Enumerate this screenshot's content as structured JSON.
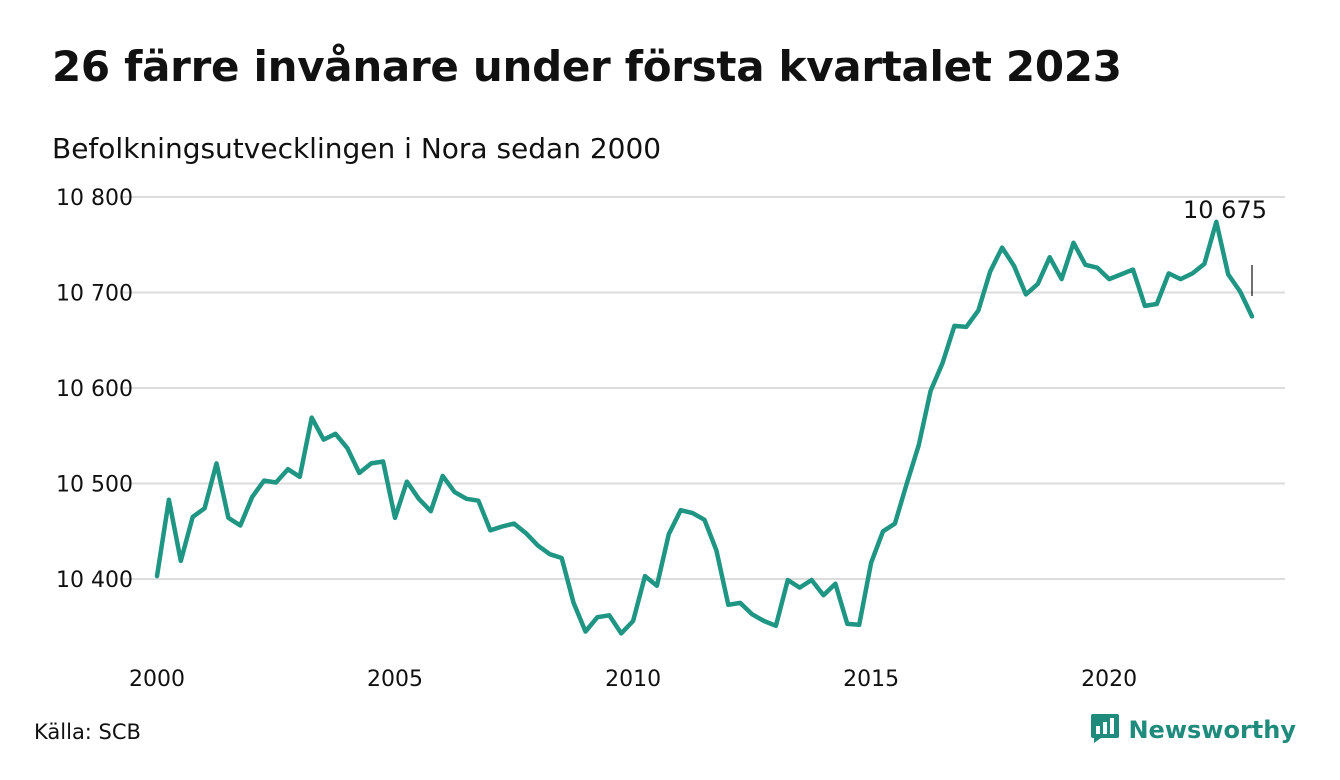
{
  "title": "26 färre invånare under första kvartalet 2023",
  "subtitle": "Befolkningsutvecklingen i Nora sedan 2000",
  "source": "Källa: SCB",
  "brand": {
    "name": "Newsworthy",
    "icon": "newsworthy-logo-icon"
  },
  "colors": {
    "line": "#1f9584",
    "grid": "#dcdcdc",
    "brand": "#1f8b7c"
  },
  "chart_data": {
    "type": "line",
    "xlim": [
      2000,
      2023.5
    ],
    "ylim": [
      10335,
      10805
    ],
    "x_ticks": [
      2000,
      2005,
      2010,
      2015,
      2020
    ],
    "x_tick_labels": [
      "2000",
      "2005",
      "2010",
      "2015",
      "2020"
    ],
    "y_ticks": [
      10400,
      10500,
      10600,
      10700,
      10800
    ],
    "y_tick_labels": [
      "10 400",
      "10 500",
      "10 600",
      "10 700",
      "10 800"
    ],
    "grid": true,
    "annotation": {
      "text": "10 675",
      "x": 2023.0,
      "y": 10675
    },
    "series": [
      {
        "x": [
          2000.0,
          2000.25,
          2000.5,
          2000.75,
          2001.0,
          2001.25,
          2001.5,
          2001.75,
          2002.0,
          2002.25,
          2002.5,
          2002.75,
          2003.0,
          2003.25,
          2003.5,
          2003.75,
          2004.0,
          2004.25,
          2004.5,
          2004.75,
          2005.0,
          2005.25,
          2005.5,
          2005.75,
          2006.0,
          2006.25,
          2006.5,
          2006.75,
          2007.0,
          2007.25,
          2007.5,
          2007.75,
          2008.0,
          2008.25,
          2008.5,
          2008.75,
          2009.0,
          2009.25,
          2009.5,
          2009.75,
          2010.0,
          2010.25,
          2010.5,
          2010.75,
          2011.0,
          2011.25,
          2011.5,
          2011.75,
          2012.0,
          2012.25,
          2012.5,
          2012.75,
          2013.0,
          2013.25,
          2013.5,
          2013.75,
          2014.0,
          2014.25,
          2014.5,
          2014.75,
          2015.0,
          2015.25,
          2015.5,
          2015.75,
          2016.0,
          2016.25,
          2016.5,
          2016.75,
          2017.0,
          2017.25,
          2017.5,
          2017.75,
          2018.0,
          2018.25,
          2018.5,
          2018.75,
          2019.0,
          2019.25,
          2019.5,
          2019.75,
          2020.0,
          2020.25,
          2020.5,
          2020.75,
          2021.0,
          2021.25,
          2021.5,
          2021.75,
          2022.0,
          2022.25,
          2022.5,
          2022.75,
          2023.0
        ],
        "y": [
          10403,
          10483,
          10419,
          10465,
          10474,
          10521,
          10464,
          10456,
          10486,
          10503,
          10501,
          10515,
          10507,
          10569,
          10546,
          10552,
          10537,
          10511,
          10521,
          10523,
          10464,
          10502,
          10484,
          10471,
          10508,
          10491,
          10484,
          10482,
          10451,
          10455,
          10458,
          10448,
          10435,
          10426,
          10422,
          10375,
          10345,
          10360,
          10362,
          10343,
          10356,
          10403,
          10393,
          10447,
          10472,
          10469,
          10462,
          10430,
          10373,
          10375,
          10363,
          10356,
          10351,
          10399,
          10391,
          10399,
          10383,
          10395,
          10353,
          10352,
          10417,
          10450,
          10458,
          10500,
          10540,
          10597,
          10626,
          10665,
          10664,
          10681,
          10722,
          10747,
          10728,
          10698,
          10709,
          10737,
          10714,
          10752,
          10729,
          10726,
          10714,
          10719,
          10724,
          10686,
          10688,
          10720,
          10714,
          10720,
          10730,
          10774,
          10719,
          10701,
          10675
        ]
      }
    ]
  }
}
